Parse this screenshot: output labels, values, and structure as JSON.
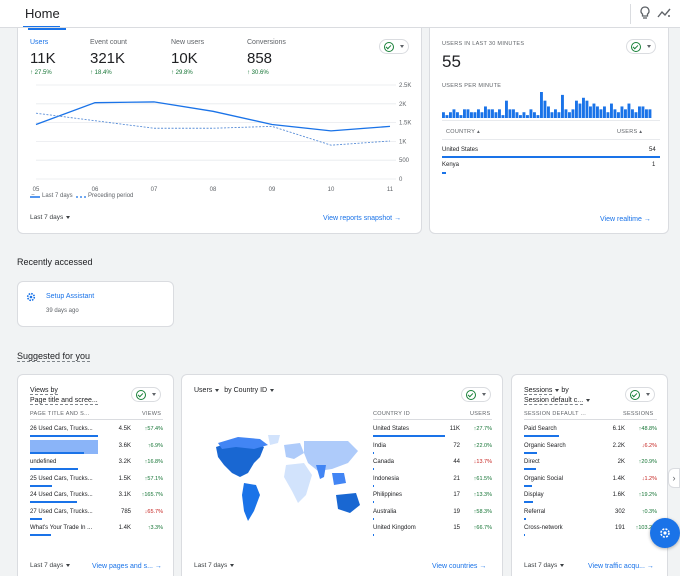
{
  "header": {
    "title": "Home"
  },
  "overview": {
    "metrics": [
      {
        "label": "Users",
        "value": "11K",
        "delta": "↑ 27.5%"
      },
      {
        "label": "Event count",
        "value": "321K",
        "delta": "↑ 18.4%"
      },
      {
        "label": "New users",
        "value": "10K",
        "delta": "↑ 29.8%"
      },
      {
        "label": "Conversions",
        "value": "858",
        "delta": "↑ 30.6%"
      }
    ],
    "legend_current": "Last 7 days",
    "legend_previous": "Preceding period",
    "date_range": "Last 7 days",
    "link": "View reports snapshot",
    "chart_data": {
      "type": "line",
      "x": [
        "05",
        "06",
        "07",
        "08",
        "09",
        "10",
        "11"
      ],
      "x_sublabel": "Sep",
      "y_ticks": [
        "2.5K",
        "2K",
        "1.5K",
        "1K",
        "500",
        "0"
      ],
      "ylim": [
        0,
        2500
      ],
      "series": [
        {
          "name": "Last 7 days",
          "values": [
            1450,
            2030,
            2050,
            1800,
            1450,
            1280,
            1400
          ]
        },
        {
          "name": "Preceding period",
          "values": [
            1750,
            1550,
            1350,
            1350,
            1400,
            900,
            1010
          ]
        }
      ]
    }
  },
  "realtime": {
    "label": "USERS IN LAST 30 MINUTES",
    "value": "55",
    "per_minute_label": "USERS PER MINUTE",
    "per_minute_bars": [
      2,
      1,
      2,
      3,
      2,
      1,
      3,
      3,
      2,
      2,
      3,
      2,
      4,
      3,
      3,
      2,
      3,
      1,
      6,
      3,
      3,
      2,
      1,
      2,
      1,
      3,
      2,
      1,
      9,
      6,
      4,
      2,
      3,
      2,
      8,
      3,
      2,
      3,
      6,
      5,
      7,
      6,
      4,
      5,
      4,
      3,
      4,
      2,
      5,
      3,
      2,
      4,
      3,
      5,
      3,
      2,
      4,
      4,
      3,
      3
    ],
    "col_country": "COUNTRY",
    "col_users": "USERS",
    "rows": [
      {
        "country": "United States",
        "users": "54"
      },
      {
        "country": "Kenya",
        "users": "1"
      }
    ],
    "link": "View realtime"
  },
  "recent": {
    "title": "Recently accessed",
    "item": "Setup Assistant",
    "time": "39 days ago"
  },
  "suggested": {
    "title": "Suggested for you",
    "pages": {
      "title_line1": "Views by",
      "title_line2": "Page title and scree...",
      "col1": "PAGE TITLE AND S...",
      "col2": "VIEWS",
      "rows": [
        {
          "name": "26 Used Cars, Trucks...",
          "value": "4.5K",
          "delta": "↑57.4%",
          "dir": "up"
        },
        {
          "name": "",
          "value": "3.6K",
          "delta": "↑6.9%",
          "dir": "up"
        },
        {
          "name": "undefined",
          "value": "3.2K",
          "delta": "↑16.8%",
          "dir": "up"
        },
        {
          "name": "25 Used Cars, Trucks...",
          "value": "1.5K",
          "delta": "↑57.1%",
          "dir": "up"
        },
        {
          "name": "24 Used Cars, Trucks...",
          "value": "3.1K",
          "delta": "↑165.7%",
          "dir": "up"
        },
        {
          "name": "27 Used Cars, Trucks...",
          "value": "785",
          "delta": "↓65.7%",
          "dir": "dn"
        },
        {
          "name": "What's Your Trade In ...",
          "value": "1.4K",
          "delta": "↑3.3%",
          "dir": "up"
        }
      ],
      "bar_fractions": [
        1.0,
        0.8,
        0.71,
        0.33,
        0.69,
        0.17,
        0.31
      ],
      "date_range": "Last 7 days",
      "link": "View pages and s..."
    },
    "countries": {
      "title_a": "Users",
      "title_b": "by Country ID",
      "col1": "COUNTRY ID",
      "col2": "USERS",
      "rows": [
        {
          "name": "United States",
          "value": "11K",
          "delta": "↑27.7%",
          "dir": "up"
        },
        {
          "name": "India",
          "value": "72",
          "delta": "↑22.0%",
          "dir": "up"
        },
        {
          "name": "Canada",
          "value": "44",
          "delta": "↓13.7%",
          "dir": "dn"
        },
        {
          "name": "Indonesia",
          "value": "21",
          "delta": "↑61.5%",
          "dir": "up"
        },
        {
          "name": "Philippines",
          "value": "17",
          "delta": "↑13.3%",
          "dir": "up"
        },
        {
          "name": "Australia",
          "value": "19",
          "delta": "↑58.3%",
          "dir": "up"
        },
        {
          "name": "United Kingdom",
          "value": "15",
          "delta": "↑66.7%",
          "dir": "up"
        }
      ],
      "date_range": "Last 7 days",
      "link": "View countries"
    },
    "sessions": {
      "title_line1": "Sessions",
      "title_line1b": "by",
      "title_line2": "Session default c...",
      "col1": "SESSION DEFAULT ...",
      "col2": "SESSIONS",
      "rows": [
        {
          "name": "Paid Search",
          "value": "6.1K",
          "delta": "↑48.8%",
          "dir": "up"
        },
        {
          "name": "Organic Search",
          "value": "2.2K",
          "delta": "↓6.2%",
          "dir": "dn"
        },
        {
          "name": "Direct",
          "value": "2K",
          "delta": "↑20.9%",
          "dir": "up"
        },
        {
          "name": "Organic Social",
          "value": "1.4K",
          "delta": "↓1.2%",
          "dir": "dn"
        },
        {
          "name": "Display",
          "value": "1.6K",
          "delta": "↑19.2%",
          "dir": "up"
        },
        {
          "name": "Referral",
          "value": "302",
          "delta": "↑0.3%",
          "dir": "up"
        },
        {
          "name": "Cross-network",
          "value": "191",
          "delta": "↑103.2%",
          "dir": "up"
        }
      ],
      "bar_fractions": [
        1.0,
        0.36,
        0.33,
        0.23,
        0.26,
        0.05,
        0.03
      ],
      "date_range": "Last 7 days",
      "link": "View traffic acqu..."
    }
  }
}
